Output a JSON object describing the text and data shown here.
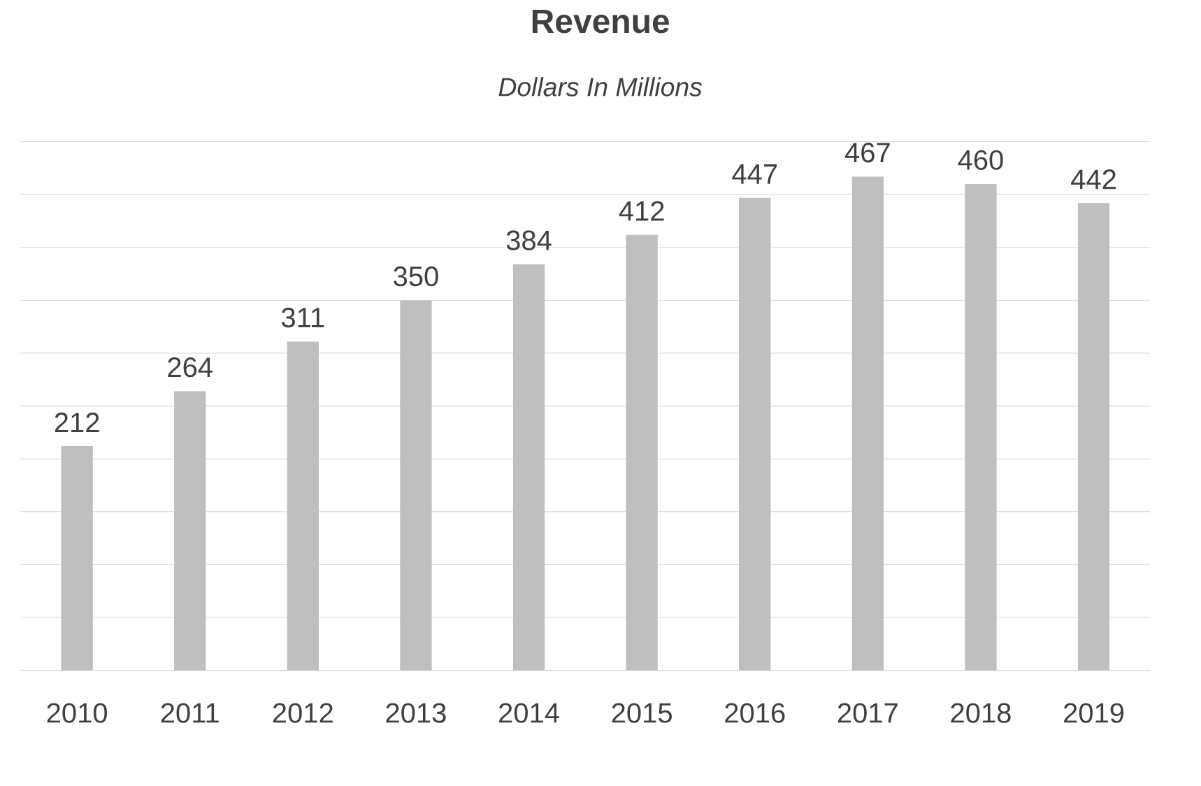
{
  "chart_data": {
    "type": "bar",
    "title": "Revenue",
    "subtitle": "Dollars In Millions",
    "categories": [
      "2010",
      "2011",
      "2012",
      "2013",
      "2014",
      "2015",
      "2016",
      "2017",
      "2018",
      "2019"
    ],
    "values": [
      212,
      264,
      311,
      350,
      384,
      412,
      447,
      467,
      460,
      442
    ],
    "color": "#bfbfbf",
    "data_labels": true,
    "grid": "y",
    "tick_labels": "x"
  }
}
